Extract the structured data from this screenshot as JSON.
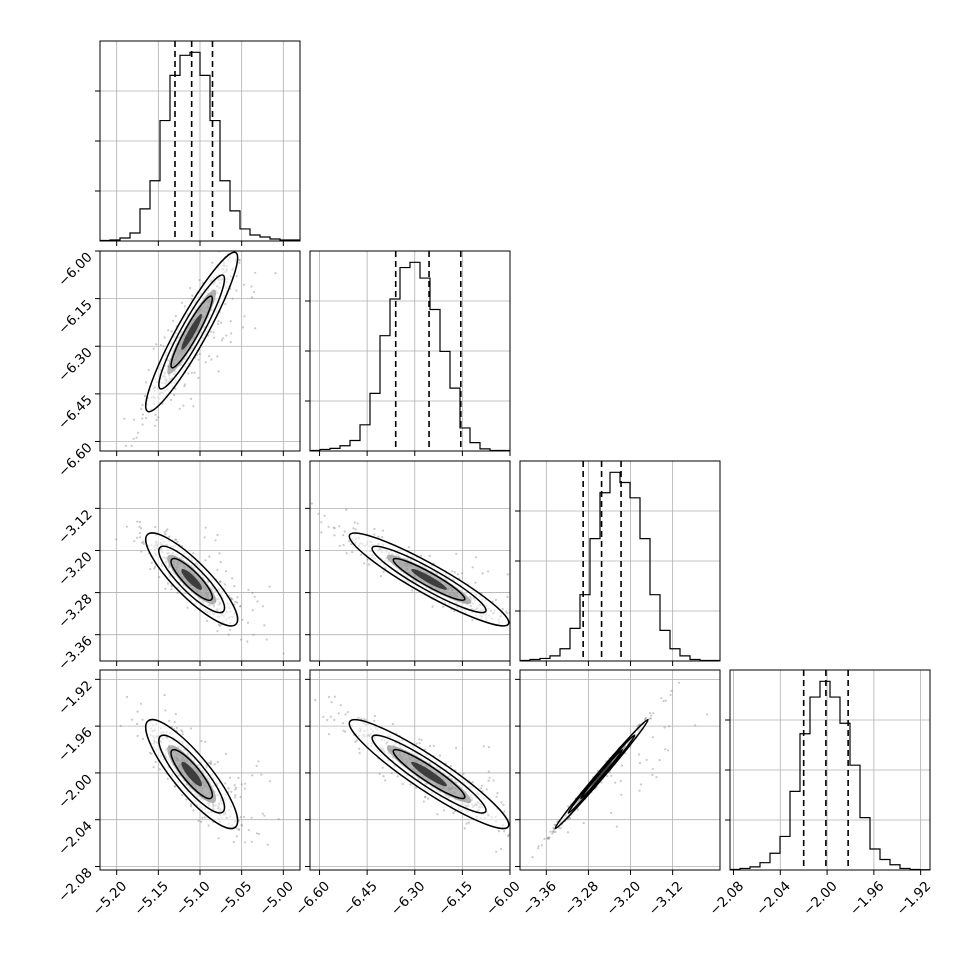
{
  "chart_data": {
    "type": "corner",
    "title": "",
    "grid": true,
    "scatter_color": "#888888",
    "histogram": {
      "type": "step",
      "bins": 20,
      "quantile_lines": "dashed"
    },
    "parameters": [
      {
        "index": 0,
        "range": [
          -5.22,
          -4.98
        ],
        "ticks": [
          -5.2,
          -5.15,
          -5.1,
          -5.05,
          -5.0
        ],
        "tick_labels": [
          "−5.20",
          "−5.15",
          "−5.10",
          "−5.05",
          "−5.00"
        ],
        "quantiles": [
          -5.13,
          -5.11,
          -5.085
        ],
        "hist_counts": [
          0.5,
          1,
          3,
          8,
          32,
          60,
          120,
          165,
          185,
          188,
          165,
          120,
          60,
          30,
          12,
          6,
          4,
          2,
          1,
          1
        ]
      },
      {
        "index": 1,
        "range": [
          -6.63,
          -6.0
        ],
        "ticks": [
          -6.6,
          -6.45,
          -6.3,
          -6.15,
          -6.0
        ],
        "tick_labels": [
          "−6.60",
          "−6.45",
          "−6.30",
          "−6.15",
          "−6.00"
        ],
        "quantiles": [
          -6.36,
          -6.255,
          -6.155
        ],
        "hist_counts": [
          0.5,
          1.5,
          2.5,
          5,
          10,
          25,
          55,
          110,
          145,
          175,
          180,
          165,
          135,
          95,
          60,
          22,
          8,
          2,
          0.5,
          0.5
        ]
      },
      {
        "index": 2,
        "range": [
          -3.41,
          -3.03
        ],
        "ticks": [
          -3.36,
          -3.28,
          -3.2,
          -3.12
        ],
        "tick_labels": [
          "−3.36",
          "−3.28",
          "−3.20",
          "−3.12"
        ],
        "quantiles": [
          -3.29,
          -3.255,
          -3.218
        ],
        "hist_counts": [
          0.5,
          1.5,
          2.5,
          5,
          12,
          32,
          65,
          120,
          165,
          185,
          175,
          160,
          120,
          65,
          30,
          12,
          5,
          1.5,
          0.5,
          0.5
        ]
      },
      {
        "index": 3,
        "range": [
          -2.083,
          -1.912
        ],
        "ticks": [
          -2.08,
          -2.04,
          -2.0,
          -1.96,
          -1.92
        ],
        "tick_labels": [
          "−2.08",
          "−2.04",
          "−2.00",
          "−1.96",
          "−1.92"
        ],
        "quantiles": [
          -2.02,
          -2.001,
          -1.982
        ],
        "hist_counts": [
          0.5,
          1.5,
          3,
          7,
          16,
          32,
          75,
          130,
          165,
          180,
          165,
          140,
          100,
          50,
          20,
          10,
          5,
          1.5,
          0.5,
          0.3
        ]
      }
    ],
    "correlations": [
      {
        "pair": [
          0,
          1
        ],
        "rho": 0.93
      },
      {
        "pair": [
          0,
          2
        ],
        "rho": -0.86
      },
      {
        "pair": [
          1,
          2
        ],
        "rho": -0.93
      },
      {
        "pair": [
          0,
          3
        ],
        "rho": -0.86
      },
      {
        "pair": [
          1,
          3
        ],
        "rho": -0.93
      },
      {
        "pair": [
          2,
          3
        ],
        "rho": 0.995
      }
    ]
  }
}
